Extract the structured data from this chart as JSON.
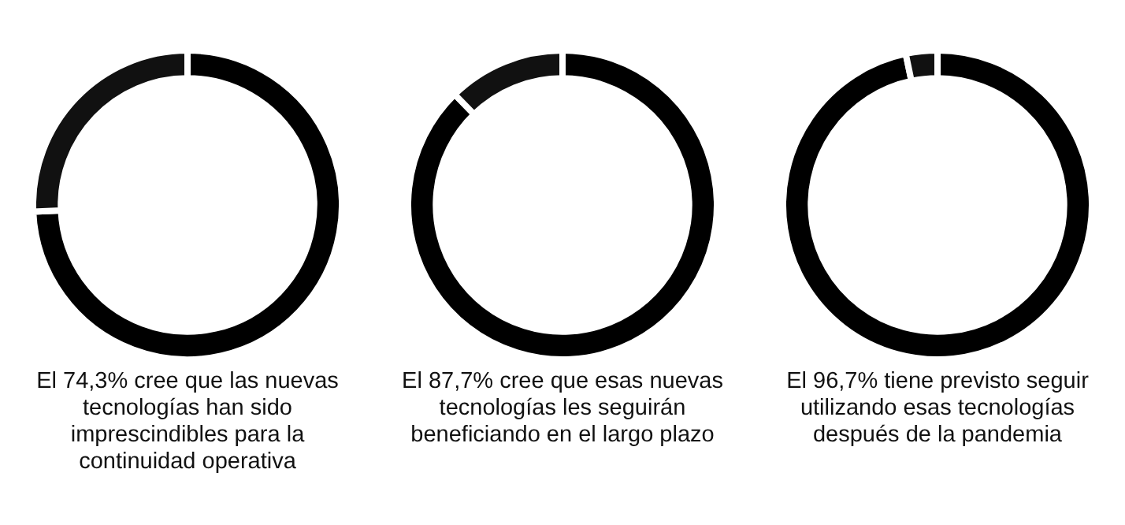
{
  "chart_data": [
    {
      "type": "donut",
      "categories": [
        null,
        null
      ],
      "values": [
        74.3,
        25.7
      ],
      "colors": [
        "#000000",
        "#111111"
      ],
      "annotations": [
        "El 74,3% cree que las nuevas tecnologías han sido imprescindibles para la continuidad operativa"
      ]
    },
    {
      "type": "donut",
      "categories": [
        null,
        null
      ],
      "values": [
        87.7,
        12.3
      ],
      "colors": [
        "#000000",
        "#111111"
      ],
      "annotations": [
        "El 87,7% cree que esas nuevas tecnologías les seguirán beneficiando en el largo plazo"
      ]
    },
    {
      "type": "donut",
      "categories": [
        null,
        null
      ],
      "values": [
        96.7,
        3.3
      ],
      "colors": [
        "#000000",
        "#111111"
      ],
      "annotations": [
        "El 96,7% tiene previsto seguir utilizando esas tecnologías después de la pandemia"
      ]
    }
  ]
}
